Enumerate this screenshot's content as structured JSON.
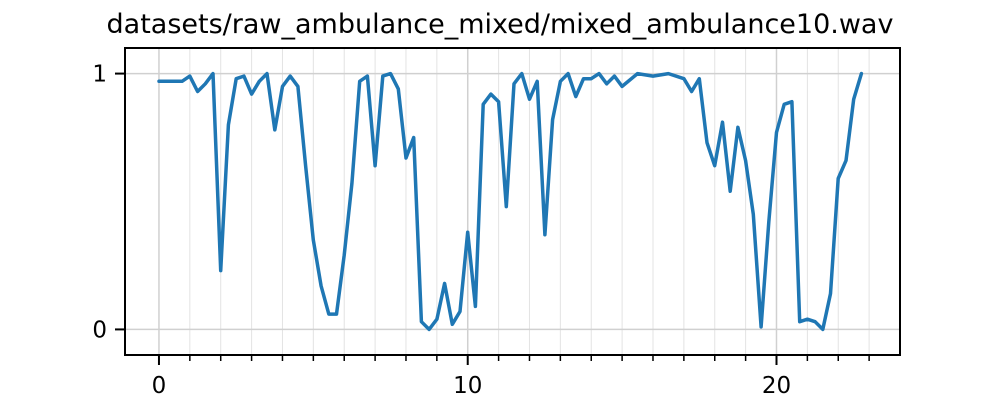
{
  "chart_data": {
    "type": "line",
    "title": "datasets/raw_ambulance_mixed/mixed_ambulance10.wav",
    "xlabel": "",
    "ylabel": "",
    "xlim": [
      -1.1,
      24.0
    ],
    "ylim": [
      -0.1,
      1.1
    ],
    "x_major_ticks": [
      0,
      10,
      20
    ],
    "x_major_tick_labels": [
      "0",
      "10",
      "20"
    ],
    "x_minor_ticks": [
      1,
      2,
      3,
      4,
      5,
      6,
      7,
      8,
      9,
      11,
      12,
      13,
      14,
      15,
      16,
      17,
      18,
      19,
      21,
      22,
      23
    ],
    "y_major_ticks": [
      0,
      1
    ],
    "y_major_tick_labels": [
      "0",
      "1"
    ],
    "grid": true,
    "line_color": "#1f77b4",
    "series": [
      {
        "x": [
          0,
          0.25,
          0.5,
          0.75,
          1.0,
          1.25,
          1.5,
          1.75,
          2.0,
          2.25,
          2.5,
          2.75,
          3.0,
          3.25,
          3.5,
          3.75,
          4.0,
          4.25,
          4.5,
          4.75,
          5.0,
          5.25,
          5.5,
          5.75,
          6.0,
          6.25,
          6.5,
          6.75,
          7.0,
          7.25,
          7.5,
          7.75,
          8.0,
          8.25,
          8.5,
          8.75,
          9.0,
          9.25,
          9.5,
          9.75,
          10.0,
          10.25,
          10.5,
          10.75,
          11.0,
          11.25,
          11.5,
          11.75,
          12.0,
          12.25,
          12.5,
          12.75,
          13.0,
          13.25,
          13.5,
          13.75,
          14.0,
          14.25,
          14.5,
          14.75,
          15.0,
          15.5,
          16.0,
          16.5,
          17.0,
          17.25,
          17.5,
          17.75,
          18.0,
          18.25,
          18.5,
          18.75,
          19.0,
          19.25,
          19.5,
          19.75,
          20.0,
          20.25,
          20.5,
          20.75,
          21.0,
          21.25,
          21.5,
          21.75,
          22.0,
          22.25,
          22.5,
          22.75
        ],
        "y": [
          0.97,
          0.97,
          0.97,
          0.97,
          0.99,
          0.93,
          0.96,
          1.0,
          0.23,
          0.8,
          0.98,
          0.99,
          0.92,
          0.97,
          1.0,
          0.78,
          0.95,
          0.99,
          0.95,
          0.64,
          0.35,
          0.17,
          0.06,
          0.06,
          0.29,
          0.57,
          0.97,
          0.99,
          0.64,
          0.99,
          1.0,
          0.94,
          0.67,
          0.75,
          0.03,
          0.0,
          0.04,
          0.18,
          0.02,
          0.07,
          0.38,
          0.09,
          0.88,
          0.92,
          0.89,
          0.48,
          0.96,
          1.0,
          0.9,
          0.97,
          0.37,
          0.82,
          0.97,
          1.0,
          0.91,
          0.98,
          0.98,
          1.0,
          0.96,
          0.99,
          0.95,
          1.0,
          0.99,
          1.0,
          0.98,
          0.93,
          0.98,
          0.73,
          0.64,
          0.81,
          0.54,
          0.79,
          0.66,
          0.45,
          0.01,
          0.42,
          0.77,
          0.88,
          0.89,
          0.03,
          0.04,
          0.03,
          0.0,
          0.14,
          0.59,
          0.66,
          0.9,
          1.0
        ]
      }
    ]
  }
}
